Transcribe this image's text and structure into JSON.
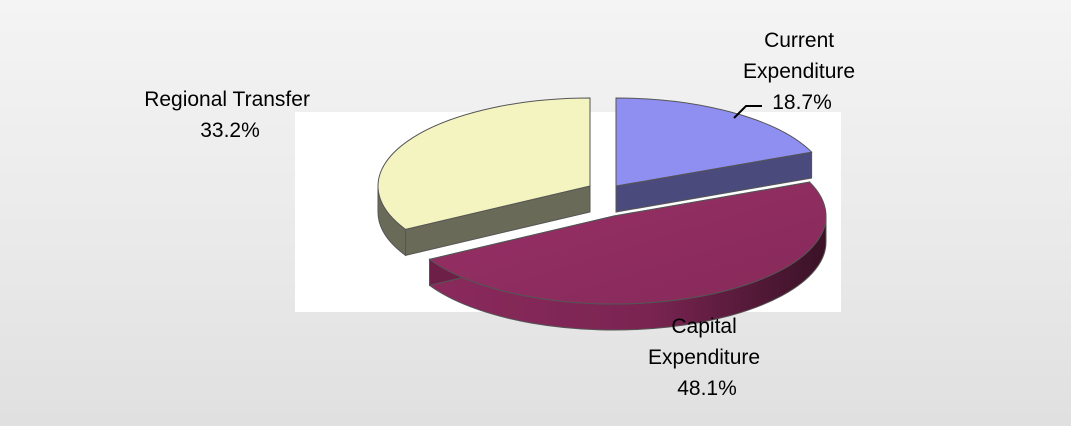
{
  "chart_data": {
    "type": "pie",
    "title": "",
    "series": [
      {
        "values": [
          18.7,
          48.1,
          33.2
        ],
        "categories": [
          "Current Expenditure",
          "Capital Expenditure",
          "Regional Transfer"
        ]
      }
    ],
    "slices": [
      {
        "lines": [
          "Current",
          "Expenditure"
        ],
        "percent_text": "18.7%",
        "value": 18.7,
        "colors": {
          "top": "#8f8ff2",
          "side": "#4a4a7c"
        }
      },
      {
        "lines": [
          "Capital",
          "Expenditure"
        ],
        "percent_text": "48.1%",
        "value": 48.1,
        "colors": {
          "top": "#8e2b5e",
          "side": "#6e1f48"
        }
      },
      {
        "lines": [
          "Regional Transfer"
        ],
        "percent_text": "33.2%",
        "value": 33.2,
        "colors": {
          "top": "#f4f4c0",
          "side": "#6a6a58"
        }
      }
    ],
    "style": "3d-exploded",
    "legend": "none",
    "plot_background": "#ffffff"
  }
}
